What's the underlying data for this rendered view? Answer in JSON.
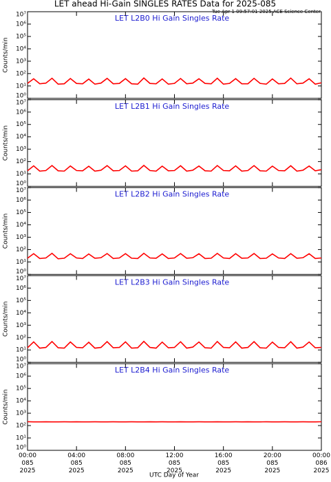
{
  "title": "LET ahead Hi-Gain SINGLES RATES Data for 2025-085",
  "subtitle": "Tue Apr  1 09:57:01 2025 ACE Science Center",
  "xlabel": "UTC Day of Year",
  "chart_data": [
    {
      "type": "line",
      "title": "LET L2B0 Hi Gain Singles Rate",
      "ylabel": "Counts/min",
      "log_y": true,
      "xlim": [
        0,
        24
      ],
      "ylim": [
        1,
        10000000
      ],
      "yticks": [
        {
          "value": 1,
          "label": "10⁰"
        },
        {
          "value": 10,
          "label": "10¹"
        },
        {
          "value": 100,
          "label": "10²"
        },
        {
          "value": 1000,
          "label": "10³"
        },
        {
          "value": 10000,
          "label": "10⁴"
        },
        {
          "value": 100000,
          "label": "10⁵"
        },
        {
          "value": 1000000,
          "label": "10⁶"
        },
        {
          "value": 10000000,
          "label": "10⁷"
        }
      ],
      "x": [
        0,
        0.5,
        1,
        1.5,
        2,
        2.5,
        3,
        3.5,
        4,
        4.5,
        5,
        5.5,
        6,
        6.5,
        7,
        7.5,
        8,
        8.5,
        9,
        9.5,
        10,
        10.5,
        11,
        11.5,
        12,
        12.5,
        13,
        13.5,
        14,
        14.5,
        15,
        15.5,
        16,
        16.5,
        17,
        17.5,
        18,
        18.5,
        19,
        19.5,
        20,
        20.5,
        21,
        21.5,
        22,
        22.5,
        23,
        23.5,
        24
      ],
      "color": "#ff0000",
      "values": [
        16,
        38,
        15,
        17,
        42,
        14,
        15,
        40,
        16,
        15,
        36,
        14,
        17,
        41,
        15,
        16,
        39,
        15,
        14,
        44,
        16,
        15,
        37,
        14,
        16,
        40,
        15,
        17,
        38,
        16,
        15,
        42,
        14,
        16,
        39,
        15,
        15,
        41,
        16,
        14,
        37,
        15,
        16,
        43,
        15,
        17,
        38,
        14,
        18
      ]
    },
    {
      "type": "line",
      "title": "LET L2B1 Hi Gain Singles Rate",
      "ylabel": "Counts/min",
      "log_y": true,
      "xlim": [
        0,
        24
      ],
      "ylim": [
        1,
        10000000
      ],
      "yticks": [
        {
          "value": 1,
          "label": "10⁰"
        },
        {
          "value": 10,
          "label": "10¹"
        },
        {
          "value": 100,
          "label": "10²"
        },
        {
          "value": 1000,
          "label": "10³"
        },
        {
          "value": 10000,
          "label": "10⁴"
        },
        {
          "value": 100000,
          "label": "10⁵"
        },
        {
          "value": 1000000,
          "label": "10⁶"
        },
        {
          "value": 10000000,
          "label": "10⁷"
        }
      ],
      "x": [
        0,
        0.5,
        1,
        1.5,
        2,
        2.5,
        3,
        3.5,
        4,
        4.5,
        5,
        5.5,
        6,
        6.5,
        7,
        7.5,
        8,
        8.5,
        9,
        9.5,
        10,
        10.5,
        11,
        11.5,
        12,
        12.5,
        13,
        13.5,
        14,
        14.5,
        15,
        15.5,
        16,
        16.5,
        17,
        17.5,
        18,
        18.5,
        19,
        19.5,
        20,
        20.5,
        21,
        21.5,
        22,
        22.5,
        23,
        23.5,
        24
      ],
      "color": "#ff0000",
      "values": [
        18,
        45,
        17,
        19,
        48,
        18,
        17,
        44,
        19,
        18,
        42,
        17,
        20,
        47,
        18,
        19,
        45,
        17,
        18,
        49,
        19,
        17,
        43,
        18,
        19,
        46,
        17,
        20,
        44,
        18,
        17,
        48,
        19,
        18,
        45,
        17,
        19,
        47,
        18,
        17,
        43,
        19,
        18,
        46,
        17,
        20,
        44,
        18,
        22
      ]
    },
    {
      "type": "line",
      "title": "LET L2B2 Hi Gain Singles Rate",
      "ylabel": "Counts/min",
      "log_y": true,
      "xlim": [
        0,
        24
      ],
      "ylim": [
        1,
        10000000
      ],
      "yticks": [
        {
          "value": 1,
          "label": "10⁰"
        },
        {
          "value": 10,
          "label": "10¹"
        },
        {
          "value": 100,
          "label": "10²"
        },
        {
          "value": 1000,
          "label": "10³"
        },
        {
          "value": 10000,
          "label": "10⁴"
        },
        {
          "value": 100000,
          "label": "10⁵"
        },
        {
          "value": 1000000,
          "label": "10⁶"
        },
        {
          "value": 10000000,
          "label": "10⁷"
        }
      ],
      "x": [
        0,
        0.5,
        1,
        1.5,
        2,
        2.5,
        3,
        3.5,
        4,
        4.5,
        5,
        5.5,
        6,
        6.5,
        7,
        7.5,
        8,
        8.5,
        9,
        9.5,
        10,
        10.5,
        11,
        11.5,
        12,
        12.5,
        13,
        13.5,
        14,
        14.5,
        15,
        15.5,
        16,
        16.5,
        17,
        17.5,
        18,
        18.5,
        19,
        19.5,
        20,
        20.5,
        21,
        21.5,
        22,
        22.5,
        23,
        23.5,
        24
      ],
      "color": "#ff0000",
      "values": [
        20,
        47,
        19,
        21,
        50,
        18,
        20,
        46,
        21,
        19,
        44,
        20,
        22,
        48,
        19,
        21,
        47,
        20,
        19,
        50,
        21,
        20,
        45,
        19,
        21,
        48,
        20,
        22,
        46,
        19,
        20,
        49,
        21,
        19,
        47,
        20,
        21,
        48,
        19,
        20,
        45,
        21,
        19,
        47,
        20,
        22,
        46,
        19,
        21
      ]
    },
    {
      "type": "line",
      "title": "LET L2B3 Hi Gain Singles Rate",
      "ylabel": "Counts/min",
      "log_y": true,
      "xlim": [
        0,
        24
      ],
      "ylim": [
        1,
        10000000
      ],
      "yticks": [
        {
          "value": 1,
          "label": "10⁰"
        },
        {
          "value": 10,
          "label": "10¹"
        },
        {
          "value": 100,
          "label": "10²"
        },
        {
          "value": 1000,
          "label": "10³"
        },
        {
          "value": 10000,
          "label": "10⁴"
        },
        {
          "value": 100000,
          "label": "10⁵"
        },
        {
          "value": 1000000,
          "label": "10⁶"
        },
        {
          "value": 10000000,
          "label": "10⁷"
        }
      ],
      "x": [
        0,
        0.5,
        1,
        1.5,
        2,
        2.5,
        3,
        3.5,
        4,
        4.5,
        5,
        5.5,
        6,
        6.5,
        7,
        7.5,
        8,
        8.5,
        9,
        9.5,
        10,
        10.5,
        11,
        11.5,
        12,
        12.5,
        13,
        13.5,
        14,
        14.5,
        15,
        15.5,
        16,
        16.5,
        17,
        17.5,
        18,
        18.5,
        19,
        19.5,
        20,
        20.5,
        21,
        21.5,
        22,
        22.5,
        23,
        23.5,
        24
      ],
      "color": "#ff0000",
      "values": [
        15,
        45,
        14,
        16,
        48,
        15,
        14,
        44,
        16,
        15,
        42,
        14,
        16,
        47,
        15,
        16,
        45,
        14,
        15,
        49,
        16,
        14,
        43,
        15,
        16,
        46,
        14,
        17,
        44,
        15,
        14,
        48,
        16,
        15,
        45,
        14,
        16,
        47,
        15,
        14,
        43,
        16,
        15,
        46,
        14,
        17,
        44,
        15,
        16
      ]
    },
    {
      "type": "line",
      "title": "LET L2B4 Hi Gain Singles Rate",
      "ylabel": "Counts/min",
      "log_y": true,
      "xlim": [
        0,
        24
      ],
      "ylim": [
        1,
        10000000
      ],
      "yticks": [
        {
          "value": 1,
          "label": "10⁰"
        },
        {
          "value": 10,
          "label": "10¹"
        },
        {
          "value": 100,
          "label": "10²"
        },
        {
          "value": 1000,
          "label": "10³"
        },
        {
          "value": 10000,
          "label": "10⁴"
        },
        {
          "value": 100000,
          "label": "10⁵"
        },
        {
          "value": 1000000,
          "label": "10⁶"
        },
        {
          "value": 10000000,
          "label": "10⁷"
        }
      ],
      "xticks": [
        {
          "value": 0,
          "label": "00:00\n085\n2025"
        },
        {
          "value": 4,
          "label": "04:00\n085\n2025"
        },
        {
          "value": 8,
          "label": "08:00\n085\n2025"
        },
        {
          "value": 12,
          "label": "12:00\n085\n2025"
        },
        {
          "value": 16,
          "label": "16:00\n085\n2025"
        },
        {
          "value": 20,
          "label": "20:00\n085\n2025"
        },
        {
          "value": 24,
          "label": "00:00\n086\n2025"
        }
      ],
      "x": [
        0,
        0.5,
        1,
        1.5,
        2,
        2.5,
        3,
        3.5,
        4,
        4.5,
        5,
        5.5,
        6,
        6.5,
        7,
        7.5,
        8,
        8.5,
        9,
        9.5,
        10,
        10.5,
        11,
        11.5,
        12,
        12.5,
        13,
        13.5,
        14,
        14.5,
        15,
        15.5,
        16,
        16.5,
        17,
        17.5,
        18,
        18.5,
        19,
        19.5,
        20,
        20.5,
        21,
        21.5,
        22,
        22.5,
        23,
        23.5,
        24
      ],
      "color": "#ff0000",
      "values": [
        205,
        200,
        198,
        202,
        200,
        199,
        201,
        200,
        203,
        198,
        200,
        201,
        199,
        200,
        202,
        200,
        198,
        201,
        200,
        199,
        203,
        200,
        201,
        198,
        200,
        202,
        199,
        200,
        201,
        200,
        198,
        202,
        200,
        199,
        201,
        200,
        203,
        198,
        200,
        201,
        199,
        200,
        202,
        200,
        198,
        201,
        200,
        199,
        204
      ]
    }
  ]
}
